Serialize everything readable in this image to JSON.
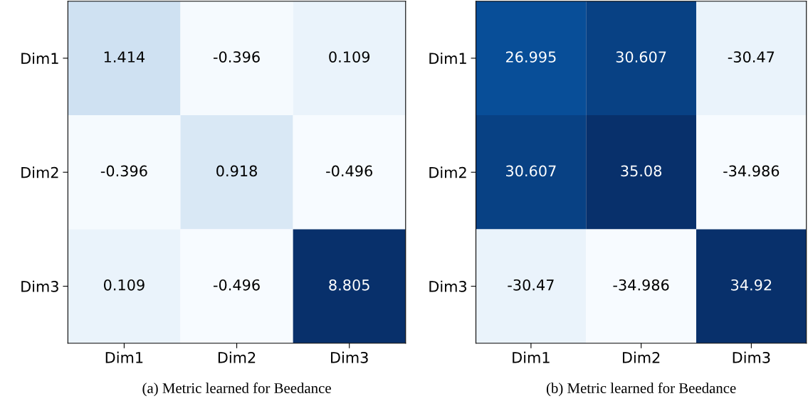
{
  "chart_data": [
    {
      "type": "heatmap",
      "categories": [
        "Dim1",
        "Dim2",
        "Dim3"
      ],
      "y_categories": [
        "Dim1",
        "Dim2",
        "Dim3"
      ],
      "cells": [
        [
          1.414,
          -0.396,
          0.109
        ],
        [
          -0.396,
          0.918,
          -0.496
        ],
        [
          0.109,
          -0.496,
          8.805
        ]
      ],
      "data_labels": true,
      "annotations": [
        "(a) Metric learned for Beedance"
      ]
    },
    {
      "type": "heatmap",
      "categories": [
        "Dim1",
        "Dim2",
        "Dim3"
      ],
      "y_categories": [
        "Dim1",
        "Dim2",
        "Dim3"
      ],
      "cells": [
        [
          26.995,
          30.607,
          -30.47
        ],
        [
          30.607,
          35.08,
          -34.986
        ],
        [
          -30.47,
          -34.986,
          34.92
        ]
      ],
      "data_labels": true,
      "annotations": [
        "(b) Metric learned for Beedance"
      ]
    }
  ]
}
